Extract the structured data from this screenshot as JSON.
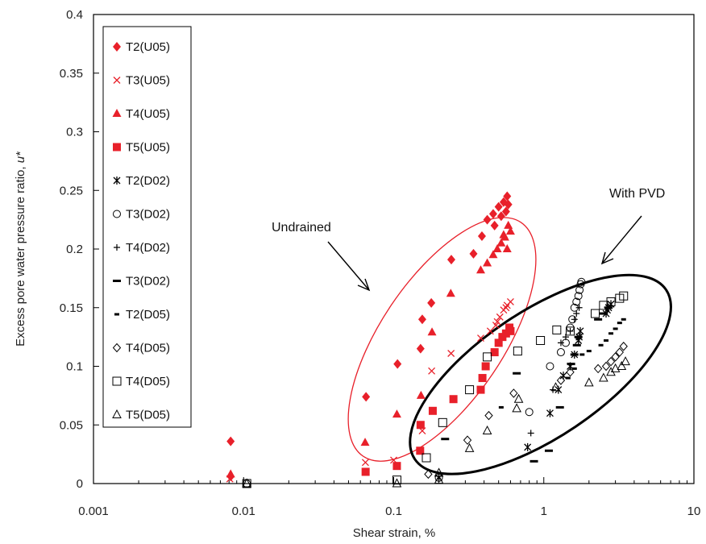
{
  "chart_data": {
    "type": "scatter",
    "title": "",
    "xlabel": "Shear strain, %",
    "ylabel_main": "Excess pore water pressure ratio, ",
    "ylabel_symbol": "u*",
    "xscale": "log",
    "xlim": [
      0.001,
      10
    ],
    "ylim": [
      0,
      0.4
    ],
    "x_ticks": [
      "0.001",
      "0.01",
      "0.1",
      "1",
      "10"
    ],
    "y_ticks": [
      "0",
      "0.05",
      "0.1",
      "0.15",
      "0.2",
      "0.25",
      "0.3",
      "0.35",
      "0.4"
    ],
    "grid": false,
    "legend_position": "top-left (inside plot)",
    "colors": {
      "undrained": "#e8202a",
      "pvd": "#000000"
    },
    "annotations": [
      {
        "id": "undrained",
        "text": "Undrained"
      },
      {
        "id": "pvd",
        "text": "With PVD"
      }
    ],
    "series": [
      {
        "name": "T2(U05)",
        "marker": "diamond-filled",
        "color": "#e8202a",
        "points": [
          [
            0.0082,
            0.036
          ],
          [
            0.0082,
            0.006
          ],
          [
            0.0654,
            0.074
          ],
          [
            0.106,
            0.102
          ],
          [
            0.151,
            0.115
          ],
          [
            0.155,
            0.14
          ],
          [
            0.178,
            0.154
          ],
          [
            0.242,
            0.191
          ],
          [
            0.34,
            0.196
          ],
          [
            0.387,
            0.211
          ],
          [
            0.42,
            0.225
          ],
          [
            0.46,
            0.23
          ],
          [
            0.5,
            0.236
          ],
          [
            0.54,
            0.24
          ],
          [
            0.57,
            0.245
          ],
          [
            0.58,
            0.238
          ],
          [
            0.47,
            0.22
          ],
          [
            0.52,
            0.228
          ],
          [
            0.56,
            0.232
          ]
        ]
      },
      {
        "name": "T3(U05)",
        "marker": "x",
        "color": "#e8202a",
        "points": [
          [
            0.0081,
            0.004
          ],
          [
            0.0648,
            0.018
          ],
          [
            0.1,
            0.02
          ],
          [
            0.155,
            0.045
          ],
          [
            0.179,
            0.096
          ],
          [
            0.241,
            0.111
          ],
          [
            0.38,
            0.124
          ],
          [
            0.44,
            0.13
          ],
          [
            0.48,
            0.135
          ],
          [
            0.51,
            0.142
          ],
          [
            0.54,
            0.148
          ],
          [
            0.57,
            0.152
          ],
          [
            0.6,
            0.155
          ],
          [
            0.49,
            0.138
          ],
          [
            0.56,
            0.15
          ]
        ]
      },
      {
        "name": "T4(U05)",
        "marker": "triangle-filled",
        "color": "#e8202a",
        "points": [
          [
            0.0082,
            0.008
          ],
          [
            0.0645,
            0.035
          ],
          [
            0.105,
            0.059
          ],
          [
            0.152,
            0.075
          ],
          [
            0.18,
            0.129
          ],
          [
            0.24,
            0.162
          ],
          [
            0.38,
            0.182
          ],
          [
            0.42,
            0.188
          ],
          [
            0.46,
            0.195
          ],
          [
            0.49,
            0.2
          ],
          [
            0.52,
            0.205
          ],
          [
            0.55,
            0.21
          ],
          [
            0.58,
            0.22
          ],
          [
            0.6,
            0.215
          ],
          [
            0.57,
            0.2
          ],
          [
            0.54,
            0.212
          ]
        ]
      },
      {
        "name": "T5(U05)",
        "marker": "square-filled",
        "color": "#e8202a",
        "points": [
          [
            0.065,
            0.01
          ],
          [
            0.105,
            0.015
          ],
          [
            0.15,
            0.028
          ],
          [
            0.151,
            0.05
          ],
          [
            0.182,
            0.062
          ],
          [
            0.25,
            0.072
          ],
          [
            0.38,
            0.08
          ],
          [
            0.39,
            0.09
          ],
          [
            0.41,
            0.1
          ],
          [
            0.47,
            0.112
          ],
          [
            0.5,
            0.12
          ],
          [
            0.53,
            0.125
          ],
          [
            0.56,
            0.128
          ],
          [
            0.59,
            0.133
          ],
          [
            0.6,
            0.13
          ]
        ]
      },
      {
        "name": "T2(D02)",
        "marker": "asterisk",
        "color": "#000000",
        "points": [
          [
            0.2,
            0.005
          ],
          [
            0.78,
            0.031
          ],
          [
            1.1,
            0.06
          ],
          [
            1.25,
            0.08
          ],
          [
            1.35,
            0.092
          ],
          [
            1.5,
            0.1
          ],
          [
            1.6,
            0.11
          ],
          [
            1.7,
            0.122
          ],
          [
            1.75,
            0.13
          ],
          [
            2.6,
            0.145
          ],
          [
            2.7,
            0.15
          ],
          [
            2.8,
            0.153
          ],
          [
            1.72,
            0.125
          ],
          [
            2.65,
            0.148
          ]
        ]
      },
      {
        "name": "T3(D02)",
        "marker": "circle-open",
        "color": "#000000",
        "points": [
          [
            0.0105,
            0.0
          ],
          [
            0.2,
            0.005
          ],
          [
            0.8,
            0.061
          ],
          [
            1.1,
            0.1
          ],
          [
            1.3,
            0.112
          ],
          [
            1.4,
            0.12
          ],
          [
            1.5,
            0.133
          ],
          [
            1.55,
            0.14
          ],
          [
            1.6,
            0.15
          ],
          [
            1.65,
            0.155
          ],
          [
            1.7,
            0.16
          ],
          [
            1.73,
            0.165
          ],
          [
            1.76,
            0.17
          ],
          [
            1.78,
            0.172
          ]
        ]
      },
      {
        "name": "T4(D02)",
        "marker": "plus",
        "color": "#000000",
        "points": [
          [
            0.82,
            0.043
          ],
          [
            1.15,
            0.08
          ],
          [
            1.3,
            0.12
          ],
          [
            1.4,
            0.125
          ],
          [
            1.5,
            0.13
          ],
          [
            1.6,
            0.14
          ],
          [
            1.65,
            0.145
          ],
          [
            1.72,
            0.15
          ]
        ]
      },
      {
        "name": "T3(D02)",
        "marker": "dash-long",
        "color": "#000000",
        "points": [
          [
            0.22,
            0.038
          ],
          [
            0.66,
            0.094
          ],
          [
            0.86,
            0.019
          ],
          [
            1.08,
            0.028
          ],
          [
            1.28,
            0.065
          ],
          [
            1.52,
            0.102
          ],
          [
            1.6,
            0.11
          ],
          [
            1.66,
            0.118
          ],
          [
            1.7,
            0.125
          ],
          [
            2.3,
            0.14
          ],
          [
            2.5,
            0.145
          ],
          [
            2.7,
            0.15
          ]
        ]
      },
      {
        "name": "T2(D05)",
        "marker": "dash-short",
        "color": "#000000",
        "points": [
          [
            0.52,
            0.065
          ],
          [
            1.45,
            0.09
          ],
          [
            1.6,
            0.098
          ],
          [
            1.8,
            0.11
          ],
          [
            2.0,
            0.113
          ],
          [
            2.4,
            0.118
          ],
          [
            2.6,
            0.122
          ],
          [
            2.8,
            0.128
          ],
          [
            3.0,
            0.132
          ],
          [
            3.2,
            0.137
          ],
          [
            3.4,
            0.14
          ]
        ]
      },
      {
        "name": "T4(D05)",
        "marker": "diamond-open",
        "color": "#000000",
        "points": [
          [
            0.17,
            0.008
          ],
          [
            0.31,
            0.037
          ],
          [
            0.43,
            0.058
          ],
          [
            0.63,
            0.077
          ],
          [
            1.3,
            0.088
          ],
          [
            1.5,
            0.095
          ],
          [
            2.3,
            0.098
          ],
          [
            2.6,
            0.1
          ],
          [
            2.8,
            0.104
          ],
          [
            3.0,
            0.108
          ],
          [
            3.2,
            0.112
          ],
          [
            3.4,
            0.117
          ]
        ]
      },
      {
        "name": "T4(D05)",
        "marker": "square-open",
        "color": "#000000",
        "points": [
          [
            0.0105,
            0.0
          ],
          [
            0.105,
            0.003
          ],
          [
            0.165,
            0.022
          ],
          [
            0.212,
            0.052
          ],
          [
            0.32,
            0.08
          ],
          [
            0.42,
            0.108
          ],
          [
            0.67,
            0.113
          ],
          [
            0.95,
            0.122
          ],
          [
            1.22,
            0.131
          ],
          [
            1.5,
            0.13
          ],
          [
            2.2,
            0.145
          ],
          [
            2.5,
            0.152
          ],
          [
            2.8,
            0.155
          ],
          [
            3.2,
            0.158
          ],
          [
            3.4,
            0.16
          ]
        ]
      },
      {
        "name": "T5(D05)",
        "marker": "triangle-open",
        "color": "#000000",
        "points": [
          [
            0.0105,
            0.0
          ],
          [
            0.105,
            0.0
          ],
          [
            0.2,
            0.003
          ],
          [
            0.2,
            0.009
          ],
          [
            0.32,
            0.03
          ],
          [
            0.42,
            0.045
          ],
          [
            0.66,
            0.064
          ],
          [
            0.68,
            0.072
          ],
          [
            1.2,
            0.082
          ],
          [
            2.0,
            0.086
          ],
          [
            2.5,
            0.09
          ],
          [
            2.8,
            0.095
          ],
          [
            3.0,
            0.098
          ],
          [
            3.3,
            0.1
          ],
          [
            3.5,
            0.104
          ]
        ]
      }
    ]
  }
}
